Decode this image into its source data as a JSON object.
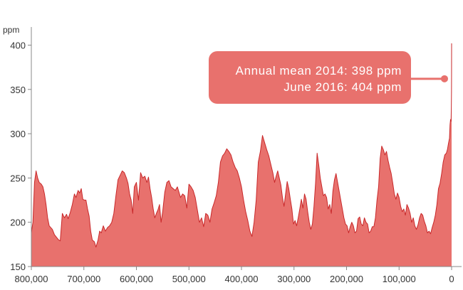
{
  "chart_data": {
    "type": "area",
    "ylabel": "ppm",
    "xlabel": "",
    "x_reversed": true,
    "xlim": [
      800000,
      0
    ],
    "ylim": [
      150,
      410
    ],
    "x_ticks": [
      800000,
      700000,
      600000,
      500000,
      400000,
      300000,
      200000,
      100000,
      0
    ],
    "x_tick_labels": [
      "800,000",
      "700,000",
      "600,000",
      "500,000",
      "400,000",
      "300,000",
      "200,000",
      "100,000",
      "0"
    ],
    "y_ticks": [
      150,
      200,
      250,
      300,
      350,
      400
    ],
    "y_tick_labels": [
      "150",
      "200",
      "250",
      "300",
      "350",
      "400"
    ],
    "grid": false,
    "series": [
      {
        "color": "#E8716D",
        "line_color": "#C8282A",
        "x": [
          800000,
          797000,
          794000,
          791000,
          788000,
          785000,
          781000,
          778000,
          775000,
          772000,
          769000,
          766000,
          763000,
          760000,
          756000,
          752000,
          748000,
          745000,
          741000,
          737000,
          733000,
          730000,
          726000,
          722000,
          718000,
          715000,
          711000,
          708000,
          705000,
          702000,
          699000,
          696000,
          693000,
          690000,
          687000,
          684000,
          680000,
          677000,
          673000,
          670000,
          667000,
          663000,
          659000,
          655000,
          651000,
          647000,
          643000,
          639000,
          635000,
          631000,
          627000,
          623000,
          619000,
          616000,
          613000,
          610000,
          607000,
          604000,
          600000,
          596000,
          592000,
          588000,
          584000,
          580000,
          577000,
          574000,
          571000,
          568000,
          565000,
          562000,
          559000,
          556000,
          553000,
          550000,
          546000,
          542000,
          538000,
          534000,
          530000,
          526000,
          522000,
          519000,
          516000,
          512000,
          508000,
          504000,
          500000,
          496000,
          492000,
          488000,
          484000,
          480000,
          476000,
          472000,
          468000,
          464000,
          460000,
          456000,
          452000,
          448000,
          444000,
          440000,
          436000,
          432000,
          428000,
          424000,
          420000,
          416000,
          412000,
          408000,
          404000,
          400000,
          396000,
          392000,
          388000,
          384000,
          380000,
          376000,
          372000,
          368000,
          364000,
          360000,
          356000,
          352000,
          348000,
          344000,
          340000,
          337000,
          334000,
          331000,
          328000,
          325000,
          322000,
          319000,
          316000,
          313000,
          310000,
          307000,
          304000,
          301000,
          298000,
          295000,
          292000,
          289000,
          286000,
          283000,
          280000,
          277000,
          274000,
          271000,
          268000,
          265000,
          262000,
          259000,
          256000,
          253000,
          250000,
          247000,
          244000,
          241000,
          238000,
          235000,
          232000,
          229000,
          226000,
          223000,
          220000,
          217000,
          214000,
          211000,
          208000,
          205000,
          202000,
          199000,
          196000,
          193000,
          190000,
          187000,
          184000,
          181000,
          178000,
          175000,
          172000,
          169000,
          166000,
          163000,
          160000,
          157000,
          154000,
          151000,
          148000,
          145000,
          142000,
          139000,
          136000,
          133000,
          130000,
          127000,
          124000,
          121000,
          118000,
          115000,
          112000,
          109000,
          106000,
          103000,
          100000,
          97000,
          94000,
          91000,
          88000,
          85000,
          82000,
          79000,
          76000,
          73000,
          70000,
          67000,
          64000,
          61000,
          58000,
          55000,
          52000,
          49000,
          46000,
          43000,
          40000,
          37000,
          34000,
          31000,
          28000,
          25000,
          22000,
          19000,
          16000,
          13000,
          10000,
          8000,
          6000,
          4000,
          3000,
          2000,
          1000,
          500,
          200,
          100,
          50,
          20,
          0
        ],
        "values": [
          188,
          200,
          245,
          258,
          250,
          245,
          243,
          240,
          232,
          220,
          205,
          196,
          194,
          192,
          186,
          183,
          180,
          179,
          210,
          205,
          209,
          204,
          211,
          220,
          232,
          228,
          236,
          233,
          238,
          226,
          225,
          225,
          215,
          207,
          190,
          180,
          178,
          172,
          180,
          190,
          188,
          196,
          190,
          194,
          196,
          200,
          210,
          230,
          248,
          253,
          258,
          256,
          250,
          244,
          232,
          225,
          210,
          240,
          245,
          225,
          256,
          250,
          252,
          245,
          251,
          238,
          228,
          215,
          205,
          210,
          214,
          220,
          200,
          212,
          234,
          245,
          247,
          240,
          238,
          236,
          240,
          234,
          228,
          232,
          230,
          216,
          243,
          240,
          236,
          228,
          214,
          200,
          205,
          195,
          210,
          208,
          200,
          215,
          222,
          230,
          245,
          268,
          275,
          278,
          283,
          280,
          276,
          268,
          262,
          258,
          250,
          240,
          225,
          212,
          202,
          190,
          184,
          200,
          225,
          268,
          280,
          298,
          290,
          282,
          275,
          265,
          255,
          245,
          252,
          258,
          250,
          242,
          228,
          218,
          232,
          246,
          238,
          226,
          215,
          198,
          202,
          196,
          205,
          215,
          226,
          216,
          232,
          226,
          212,
          200,
          192,
          198,
          218,
          244,
          278,
          265,
          250,
          240,
          230,
          232,
          228,
          215,
          220,
          210,
          235,
          248,
          255,
          245,
          235,
          225,
          215,
          205,
          198,
          196,
          188,
          195,
          200,
          196,
          188,
          190,
          204,
          206,
          198,
          196,
          205,
          200,
          198,
          188,
          190,
          195,
          195,
          205,
          225,
          240,
          272,
          286,
          282,
          276,
          280,
          270,
          262,
          255,
          244,
          232,
          226,
          233,
          228,
          218,
          212,
          215,
          208,
          220,
          216,
          210,
          200,
          205,
          196,
          192,
          197,
          205,
          210,
          208,
          201,
          196,
          188,
          190,
          187,
          194,
          200,
          208,
          220,
          238,
          244,
          255,
          268,
          276,
          278,
          282,
          289,
          295,
          310,
          316,
          314,
          330,
          348,
          368,
          385,
          395,
          402
        ]
      }
    ],
    "annotation": {
      "lines": [
        "Annual mean 2014: 398 ppm",
        "June 2016: 404 ppm"
      ],
      "point_x": 0,
      "point_y": 362,
      "box_color": "#E8716D",
      "text_color": "#FFFFFF"
    }
  }
}
